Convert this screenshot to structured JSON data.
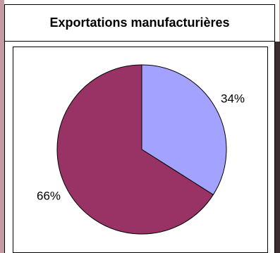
{
  "chart_data": {
    "type": "pie",
    "title": "Exportations manufacturières",
    "categories": [
      "",
      ""
    ],
    "values": [
      34,
      66
    ],
    "labels": [
      "34%",
      "66%"
    ],
    "colors": [
      "#a3a3ff",
      "#993366"
    ],
    "start_angle_deg": 0,
    "direction": "clockwise",
    "legend": "none"
  }
}
